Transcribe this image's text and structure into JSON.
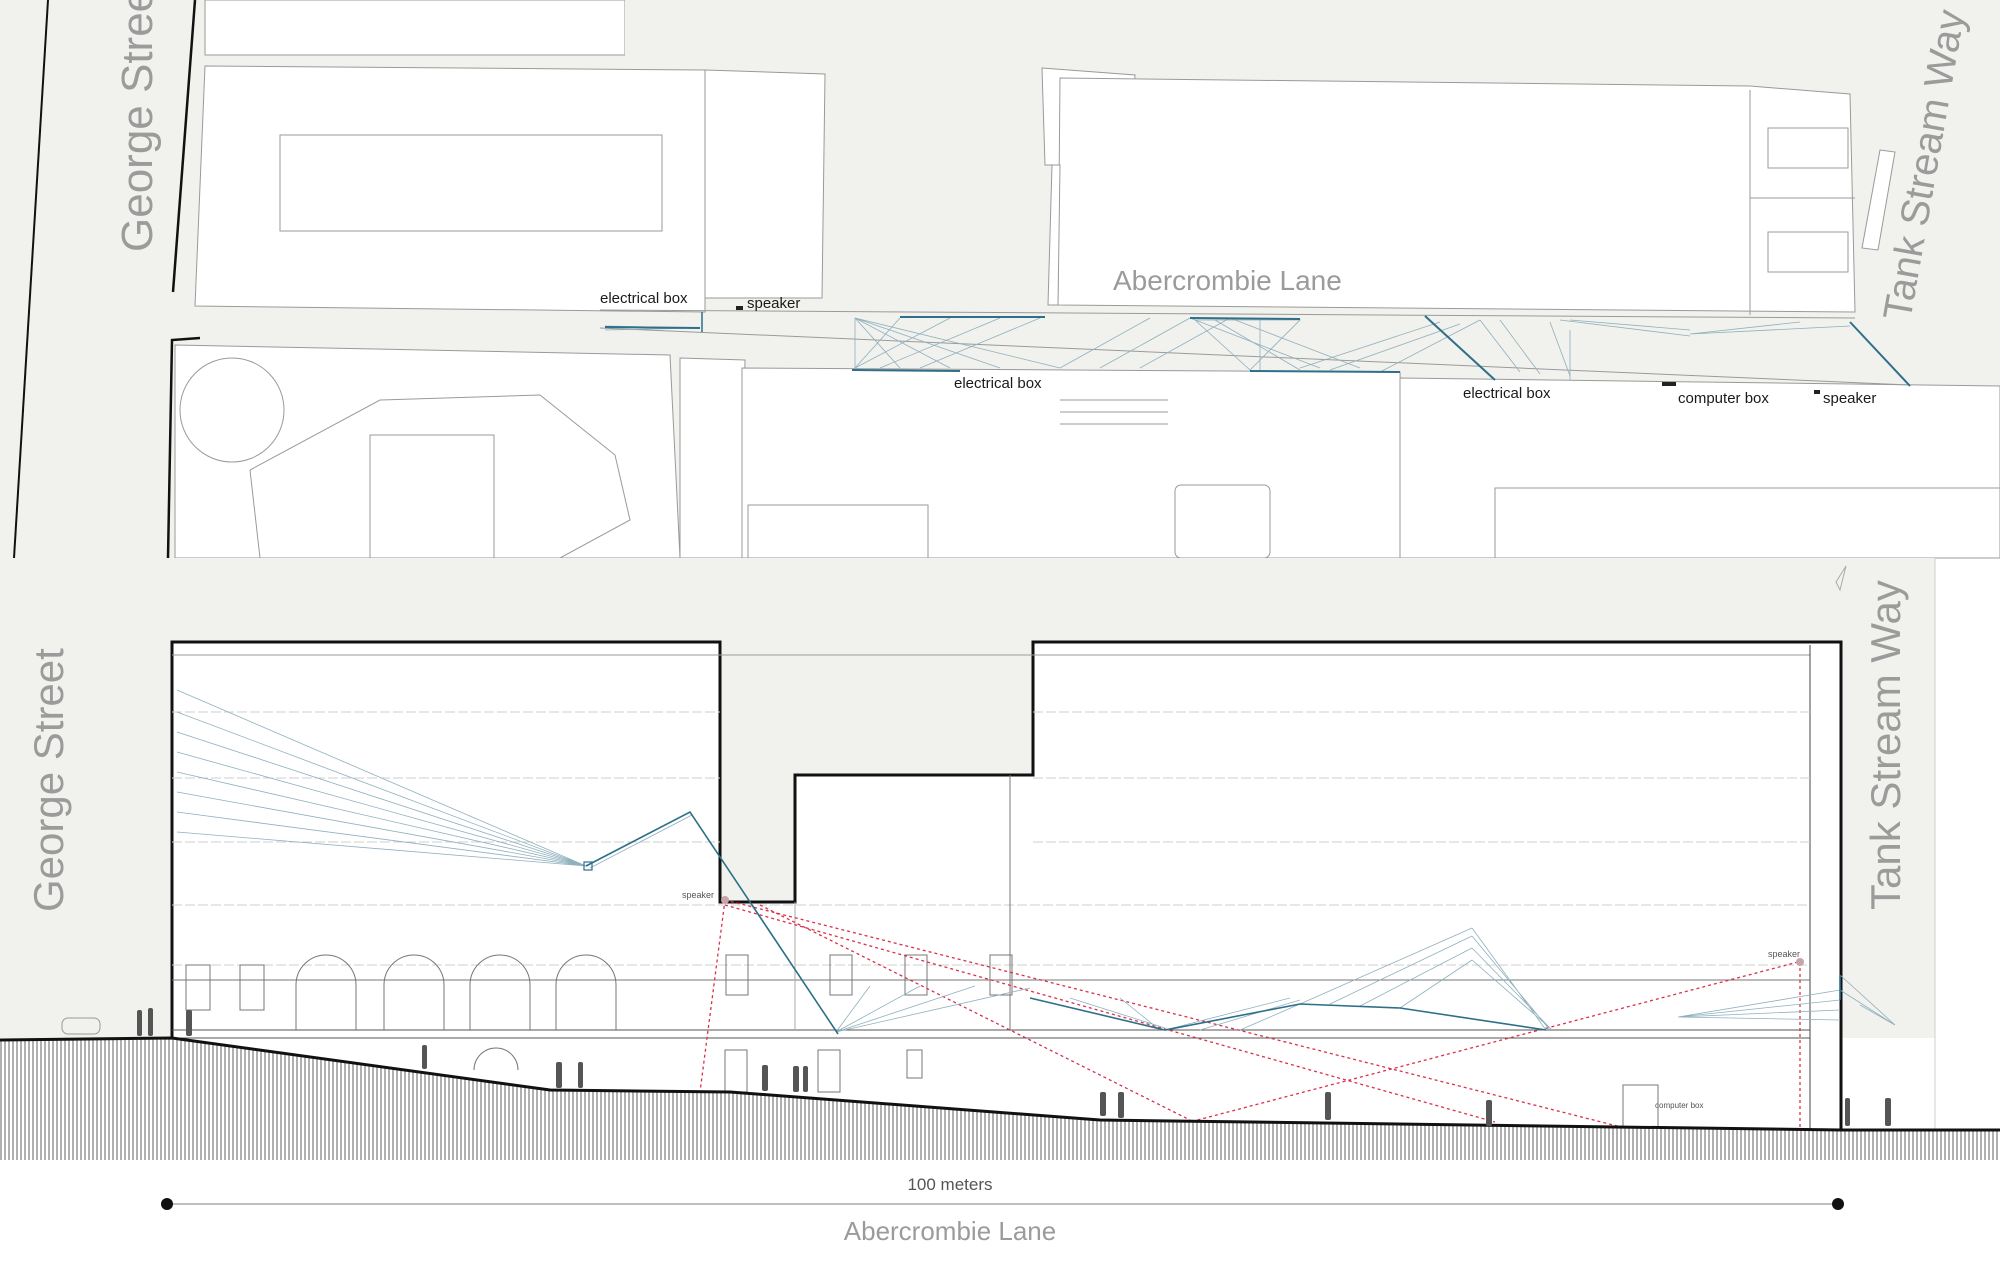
{
  "plan": {
    "street_left": "George Street",
    "street_right": "Tank Stream Way",
    "lane": "Abercrombie Lane",
    "labels": {
      "electrical_box_1": "electrical box",
      "speaker_1": "speaker",
      "electrical_box_2": "electrical box",
      "electrical_box_3": "electrical box",
      "computer_box": "computer box",
      "speaker_2": "speaker"
    }
  },
  "section": {
    "street_left": "George Street",
    "street_right": "Tank Stream Way",
    "speaker_left": "speaker",
    "speaker_right": "speaker",
    "computer_box": "computer box"
  },
  "scale": {
    "label": "100 meters",
    "title": "Abercrombie Lane"
  },
  "colors": {
    "ground_bg": "#f1f1ed",
    "string_blue": "#2e6f89",
    "string_light": "#8fb0bd",
    "sound_red": "#d9314a",
    "building_line": "#111111"
  }
}
